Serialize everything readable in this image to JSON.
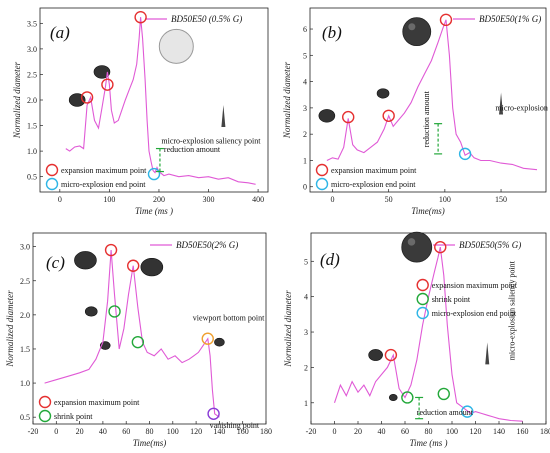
{
  "chart_data": [
    {
      "type": "line",
      "panel_label": "(a)",
      "legend": "BD50E50 (0.5% G)",
      "xlabel": "Time (ms )",
      "ylabel": "Normalized diameter",
      "xlim": [
        -40,
        420
      ],
      "ylim": [
        0.2,
        3.8
      ],
      "xticks": [
        0,
        100,
        200,
        300,
        400
      ],
      "yticks": [
        0.5,
        1.0,
        1.5,
        2.0,
        2.5,
        3.0,
        3.5
      ],
      "series": [
        {
          "name": "BD50E50 (0.5% G)",
          "color": "#e05ad6",
          "x": [
            12,
            20,
            30,
            40,
            48,
            55,
            62,
            70,
            78,
            85,
            92,
            96,
            100,
            104,
            110,
            118,
            125,
            132,
            140,
            148,
            155,
            160,
            163,
            167,
            172,
            176,
            180,
            184,
            188,
            192,
            196,
            200,
            210,
            220,
            240,
            260,
            280,
            300,
            320,
            340,
            360,
            380,
            395
          ],
          "y": [
            1.05,
            1.0,
            1.08,
            1.1,
            1.05,
            1.9,
            2.05,
            1.6,
            1.45,
            1.85,
            2.25,
            2.55,
            2.3,
            1.8,
            1.55,
            1.6,
            1.8,
            2.0,
            2.2,
            2.4,
            2.7,
            3.2,
            3.62,
            3.2,
            2.4,
            1.6,
            1.0,
            0.8,
            0.62,
            0.58,
            0.68,
            0.6,
            0.52,
            0.55,
            0.5,
            0.52,
            0.48,
            0.5,
            0.45,
            0.48,
            0.4,
            0.38,
            0.35
          ]
        }
      ],
      "markers": [
        {
          "label": "expansion maximum point",
          "color": "#e53030",
          "points": [
            [
              55,
              2.05
            ],
            [
              96,
              2.3
            ],
            [
              163,
              3.62
            ]
          ]
        },
        {
          "label": "micro-explosion end point",
          "color": "#2eb5e6",
          "points": [
            [
              190,
              0.55
            ]
          ]
        }
      ],
      "annotations": [
        "micro-explosion saliency point",
        "reduction amount"
      ]
    },
    {
      "type": "line",
      "panel_label": "(b)",
      "legend": "BD50E50(1% G)",
      "xlabel": "Time(ms)",
      "ylabel": "Normalized diameter",
      "xlim": [
        -20,
        190
      ],
      "ylim": [
        -0.2,
        6.8
      ],
      "xticks": [
        0,
        50,
        100,
        150
      ],
      "yticks": [
        0,
        1,
        2,
        3,
        4,
        5,
        6
      ],
      "series": [
        {
          "name": "BD50E50(1% G)",
          "color": "#e05ad6",
          "x": [
            -5,
            0,
            5,
            10,
            14,
            18,
            22,
            28,
            34,
            40,
            46,
            50,
            54,
            58,
            64,
            70,
            76,
            82,
            88,
            94,
            98,
            101,
            104,
            107,
            110,
            114,
            118,
            122,
            126,
            132,
            140,
            150,
            160,
            170,
            182
          ],
          "y": [
            1.0,
            1.1,
            1.05,
            1.5,
            2.6,
            1.6,
            1.4,
            1.3,
            1.5,
            1.7,
            2.2,
            2.7,
            2.3,
            2.5,
            2.8,
            3.2,
            3.8,
            4.3,
            4.8,
            5.5,
            6.0,
            6.35,
            5.0,
            3.0,
            2.0,
            1.7,
            1.2,
            1.3,
            1.1,
            1.0,
            1.0,
            0.9,
            0.85,
            0.7,
            0.65
          ]
        }
      ],
      "markers": [
        {
          "label": "expansion maximum point",
          "color": "#e53030",
          "points": [
            [
              14,
              2.65
            ],
            [
              50,
              2.7
            ],
            [
              101,
              6.35
            ]
          ]
        },
        {
          "label": "micro-explosion end point",
          "color": "#2eb5e6",
          "points": [
            [
              118,
              1.25
            ]
          ]
        }
      ],
      "annotations": [
        "micro-explosion saliency point",
        "reduction amount"
      ]
    },
    {
      "type": "line",
      "panel_label": "(c)",
      "legend": "BD50E50(2% G)",
      "xlabel": "Time(ms)",
      "ylabel": "Normalized diameter",
      "xlim": [
        -20,
        180
      ],
      "ylim": [
        0.4,
        3.2
      ],
      "xticks": [
        -20,
        0,
        20,
        40,
        60,
        80,
        100,
        120,
        140,
        160,
        180
      ],
      "yticks": [
        0.5,
        1.0,
        1.5,
        2.0,
        2.5,
        3.0
      ],
      "series": [
        {
          "name": "BD50E50(2% G)",
          "color": "#e05ad6",
          "x": [
            -10,
            0,
            10,
            20,
            28,
            34,
            40,
            44,
            47,
            50,
            54,
            58,
            62,
            66,
            70,
            74,
            78,
            84,
            90,
            96,
            102,
            108,
            114,
            118,
            122,
            126,
            130,
            132,
            134,
            136,
            140
          ],
          "y": [
            1.0,
            1.05,
            1.1,
            1.15,
            1.2,
            1.35,
            1.6,
            2.2,
            2.95,
            2.3,
            1.5,
            1.8,
            2.3,
            2.72,
            2.1,
            1.6,
            1.45,
            1.4,
            1.5,
            1.35,
            1.4,
            1.3,
            1.35,
            1.4,
            1.45,
            1.55,
            1.65,
            1.4,
            0.9,
            0.55,
            0.5
          ]
        }
      ],
      "markers": [
        {
          "label": "expansion maximum point",
          "color": "#e53030",
          "points": [
            [
              47,
              2.95
            ],
            [
              66,
              2.72
            ]
          ]
        },
        {
          "label": "shrink point",
          "color": "#23a83a",
          "points": [
            [
              50,
              2.05
            ],
            [
              70,
              1.6
            ]
          ]
        },
        {
          "label": "viewport bottom point",
          "color": "#f0a030",
          "points": [
            [
              130,
              1.65
            ]
          ]
        },
        {
          "label": "vanishing point",
          "color": "#8a3cd6",
          "points": [
            [
              135,
              0.55
            ]
          ]
        }
      ],
      "annotations": [
        "viewport bottom point",
        "vanishing point"
      ]
    },
    {
      "type": "line",
      "panel_label": "(d)",
      "legend": "BD50E50(5% G)",
      "xlabel": "Time (ms )",
      "ylabel": "Normalized diameter",
      "xlim": [
        -20,
        180
      ],
      "ylim": [
        0.4,
        5.8
      ],
      "xticks": [
        -20,
        0,
        20,
        40,
        60,
        80,
        100,
        120,
        140,
        160,
        180
      ],
      "yticks": [
        1,
        2,
        3,
        4,
        5
      ],
      "series": [
        {
          "name": "BD50E50(5% G)",
          "color": "#e05ad6",
          "x": [
            0,
            5,
            10,
            15,
            20,
            25,
            30,
            35,
            40,
            45,
            50,
            55,
            60,
            65,
            70,
            75,
            80,
            85,
            88,
            90,
            93,
            96,
            100,
            104,
            108,
            112,
            116,
            120,
            125,
            130,
            135,
            140,
            150,
            160
          ],
          "y": [
            1.0,
            1.5,
            1.2,
            1.6,
            1.3,
            1.5,
            1.2,
            1.6,
            1.8,
            2.0,
            2.35,
            1.4,
            1.15,
            1.5,
            2.2,
            3.2,
            4.0,
            4.7,
            5.1,
            5.4,
            4.6,
            3.2,
            1.8,
            1.0,
            0.9,
            0.8,
            0.7,
            0.75,
            0.7,
            0.65,
            0.6,
            0.55,
            0.5,
            0.48
          ]
        }
      ],
      "markers": [
        {
          "label": "expansion maximum point",
          "color": "#e53030",
          "points": [
            [
              48,
              2.35
            ],
            [
              90,
              5.4
            ]
          ]
        },
        {
          "label": "shrink point",
          "color": "#23a83a",
          "points": [
            [
              62,
              1.15
            ],
            [
              93,
              1.25
            ]
          ]
        },
        {
          "label": "micro-explosion end point",
          "color": "#2eb5e6",
          "points": [
            [
              113,
              0.75
            ]
          ]
        }
      ],
      "annotations": [
        "micro-explosion saliency point",
        "reduction amount"
      ]
    }
  ]
}
